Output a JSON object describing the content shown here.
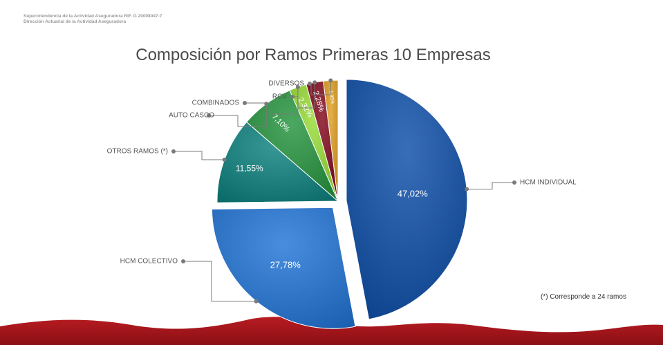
{
  "header": {
    "line1": "Superintendencia de la Actividad Aseguradora RIF. G 20008047-7",
    "line2": "Dirección Actuarial de la Actividad Aseguradora"
  },
  "footnote": "(*) Corresponde a 24 ramos",
  "colors": {
    "wave": "#a8151c",
    "callout_line": "#7a7a7a"
  },
  "chart_data": {
    "type": "pie",
    "title": "Composición por Ramos Primeras 10 Empresas",
    "slices": [
      {
        "name": "HCM INDIVIDUAL",
        "value": 47.02,
        "label": "47,02%",
        "color": "#1a4f9a"
      },
      {
        "name": "HCM COLECTIVO",
        "value": 27.78,
        "label": "27,78%",
        "color": "#2b6fc0"
      },
      {
        "name": "OTROS RAMOS (*)",
        "value": 11.55,
        "label": "11,55%",
        "color": "#1a7a78"
      },
      {
        "name": "AUTO CASCO",
        "value": 7.1,
        "label": "7,10%",
        "color": "#2e8a42"
      },
      {
        "name": "COMBINADOS",
        "value": 2.32,
        "label": "2,32%",
        "color": "#8cc43c"
      },
      {
        "name": "RCV",
        "value": 2.28,
        "label": "2,28%",
        "color": "#7a1626"
      },
      {
        "name": "DIVERSOS",
        "value": 1.95,
        "label": "1,95%",
        "color": "#c8922a"
      }
    ]
  }
}
